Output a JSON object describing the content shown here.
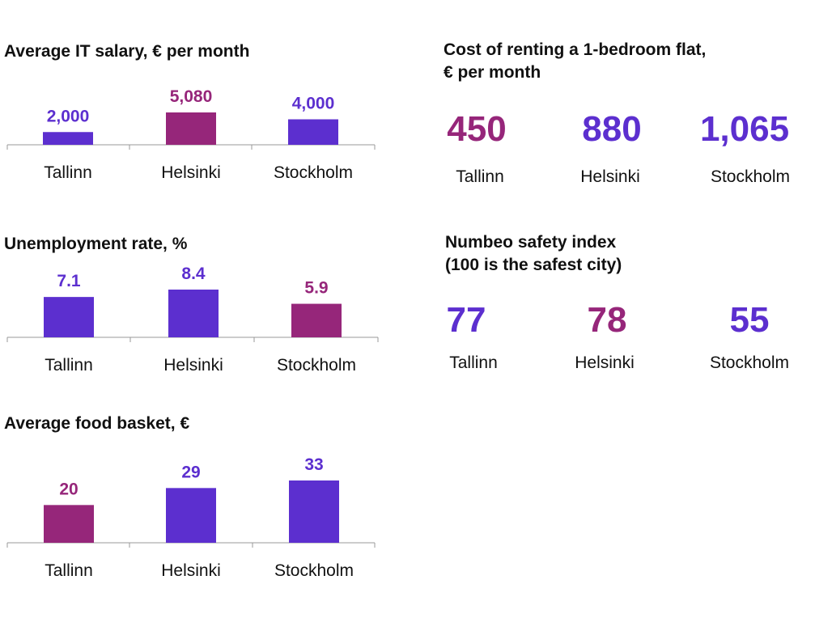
{
  "colors": {
    "purple": "#5c2fcf",
    "magenta": "#96267a",
    "axis": "#999999",
    "text": "#111111"
  },
  "chart_data": [
    {
      "type": "bar",
      "title": "Average IT salary, € per month",
      "categories": [
        "Tallinn",
        "Helsinki",
        "Stockholm"
      ],
      "values": [
        2000,
        5080,
        4000
      ],
      "value_labels": [
        "2,000",
        "5,080",
        "4,000"
      ],
      "highlight_index": 1
    },
    {
      "type": "bar",
      "title": "Unemployment rate, %",
      "categories": [
        "Tallinn",
        "Helsinki",
        "Stockholm"
      ],
      "values": [
        7.1,
        8.4,
        5.9
      ],
      "value_labels": [
        "7.1",
        "8.4",
        "5.9"
      ],
      "highlight_index": 2
    },
    {
      "type": "bar",
      "title": "Average food basket, €",
      "categories": [
        "Tallinn",
        "Helsinki",
        "Stockholm"
      ],
      "values": [
        20,
        29,
        33
      ],
      "value_labels": [
        "20",
        "29",
        "33"
      ],
      "highlight_index": 0
    },
    {
      "type": "table",
      "title": "Cost of renting a 1-bedroom flat, € per month",
      "categories": [
        "Tallinn",
        "Helsinki",
        "Stockholm"
      ],
      "values": [
        450,
        880,
        1065
      ],
      "value_labels": [
        "450",
        "880",
        "1,065"
      ],
      "highlight_index": 0
    },
    {
      "type": "table",
      "title": "Numbeo safety index (100 is the safest city)",
      "categories": [
        "Tallinn",
        "Helsinki",
        "Stockholm"
      ],
      "values": [
        77,
        78,
        55
      ],
      "value_labels": [
        "77",
        "78",
        "55"
      ],
      "highlight_index": 1
    }
  ],
  "titles": {
    "salary": "Average IT salary, € per month",
    "unemployment": "Unemployment rate, %",
    "food": "Average food basket, €",
    "rent_line1": "Cost of renting a 1-bedroom flat,",
    "rent_line2": "€ per month",
    "safety_line1": "Numbeo safety index",
    "safety_line2": "(100 is the safest city)"
  }
}
